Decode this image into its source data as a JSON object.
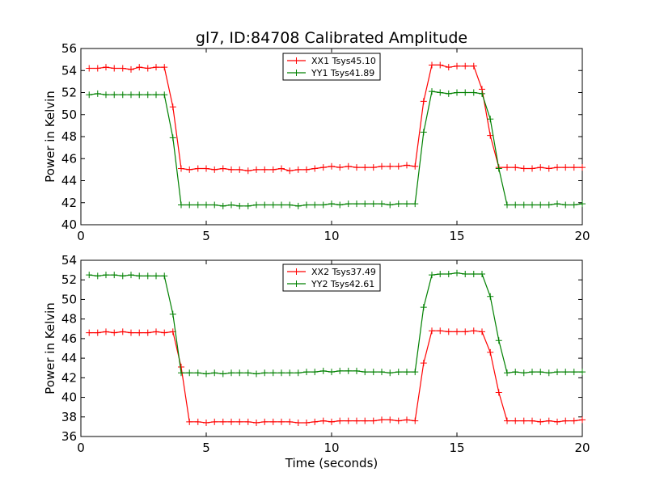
{
  "chart_data": [
    {
      "type": "line",
      "title": "gl7, ID:84708 Calibrated Amplitude",
      "xlabel": "",
      "ylabel": "Power in Kelvin",
      "xlim": [
        0,
        20
      ],
      "ylim": [
        40,
        56
      ],
      "xticks": [
        "0",
        "5",
        "10",
        "15",
        "20"
      ],
      "yticks": [
        "40",
        "42",
        "44",
        "46",
        "48",
        "50",
        "52",
        "54",
        "56"
      ],
      "grid": false,
      "legend": "top-center",
      "x": [
        0.33,
        0.67,
        1.0,
        1.33,
        1.67,
        2.0,
        2.33,
        2.67,
        3.0,
        3.33,
        3.67,
        4.0,
        4.33,
        4.67,
        5.0,
        5.33,
        5.67,
        6.0,
        6.33,
        6.67,
        7.0,
        7.33,
        7.67,
        8.0,
        8.33,
        8.67,
        9.0,
        9.33,
        9.67,
        10.0,
        10.33,
        10.67,
        11.0,
        11.33,
        11.67,
        12.0,
        12.33,
        12.67,
        13.0,
        13.33,
        13.67,
        14.0,
        14.33,
        14.67,
        15.0,
        15.33,
        15.67,
        16.0,
        16.33,
        16.67,
        17.0,
        17.33,
        17.67,
        18.0,
        18.33,
        18.67,
        19.0,
        19.33,
        19.67,
        20.0
      ],
      "series": [
        {
          "name": "XX1 Tsys45.10",
          "color": "#ff0000",
          "values": [
            54.2,
            54.2,
            54.3,
            54.2,
            54.2,
            54.1,
            54.3,
            54.2,
            54.3,
            54.3,
            50.7,
            45.1,
            45.0,
            45.1,
            45.1,
            45.0,
            45.1,
            45.0,
            45.0,
            44.9,
            45.0,
            45.0,
            45.0,
            45.1,
            44.9,
            45.0,
            45.0,
            45.1,
            45.2,
            45.3,
            45.2,
            45.3,
            45.2,
            45.2,
            45.2,
            45.3,
            45.3,
            45.3,
            45.4,
            45.3,
            51.2,
            54.5,
            54.5,
            54.3,
            54.4,
            54.4,
            54.4,
            52.3,
            48.1,
            45.2,
            45.2,
            45.2,
            45.1,
            45.1,
            45.2,
            45.1,
            45.2,
            45.2,
            45.2,
            45.2
          ]
        },
        {
          "name": "YY1 Tsys41.89",
          "color": "#008000",
          "values": [
            51.8,
            51.9,
            51.8,
            51.8,
            51.8,
            51.8,
            51.8,
            51.8,
            51.8,
            51.8,
            47.9,
            41.8,
            41.8,
            41.8,
            41.8,
            41.8,
            41.7,
            41.8,
            41.7,
            41.7,
            41.8,
            41.8,
            41.8,
            41.8,
            41.8,
            41.7,
            41.8,
            41.8,
            41.8,
            41.9,
            41.8,
            41.9,
            41.9,
            41.9,
            41.9,
            41.9,
            41.8,
            41.9,
            41.9,
            41.9,
            48.4,
            52.1,
            52.0,
            51.9,
            52.0,
            52.0,
            52.0,
            51.9,
            49.6,
            45.1,
            41.8,
            41.8,
            41.8,
            41.8,
            41.8,
            41.8,
            41.9,
            41.8,
            41.8,
            41.9
          ]
        }
      ]
    },
    {
      "type": "line",
      "title": "",
      "xlabel": "Time (seconds)",
      "ylabel": "Power in Kelvin",
      "xlim": [
        0,
        20
      ],
      "ylim": [
        36,
        54
      ],
      "xticks": [
        "0",
        "5",
        "10",
        "15",
        "20"
      ],
      "yticks": [
        "36",
        "38",
        "40",
        "42",
        "44",
        "46",
        "48",
        "50",
        "52",
        "54"
      ],
      "grid": false,
      "legend": "top-center",
      "x": [
        0.33,
        0.67,
        1.0,
        1.33,
        1.67,
        2.0,
        2.33,
        2.67,
        3.0,
        3.33,
        3.67,
        4.0,
        4.33,
        4.67,
        5.0,
        5.33,
        5.67,
        6.0,
        6.33,
        6.67,
        7.0,
        7.33,
        7.67,
        8.0,
        8.33,
        8.67,
        9.0,
        9.33,
        9.67,
        10.0,
        10.33,
        10.67,
        11.0,
        11.33,
        11.67,
        12.0,
        12.33,
        12.67,
        13.0,
        13.33,
        13.67,
        14.0,
        14.33,
        14.67,
        15.0,
        15.33,
        15.67,
        16.0,
        16.33,
        16.67,
        17.0,
        17.33,
        17.67,
        18.0,
        18.33,
        18.67,
        19.0,
        19.33,
        19.67,
        20.0
      ],
      "series": [
        {
          "name": "XX2 Tsys37.49",
          "color": "#ff0000",
          "values": [
            46.6,
            46.6,
            46.7,
            46.6,
            46.7,
            46.6,
            46.6,
            46.6,
            46.7,
            46.6,
            46.7,
            43.1,
            37.5,
            37.5,
            37.4,
            37.5,
            37.5,
            37.5,
            37.5,
            37.5,
            37.4,
            37.5,
            37.5,
            37.5,
            37.5,
            37.4,
            37.4,
            37.5,
            37.6,
            37.5,
            37.6,
            37.6,
            37.6,
            37.6,
            37.6,
            37.7,
            37.7,
            37.6,
            37.7,
            37.6,
            43.5,
            46.8,
            46.8,
            46.7,
            46.7,
            46.7,
            46.8,
            46.7,
            44.6,
            40.5,
            37.6,
            37.6,
            37.6,
            37.6,
            37.5,
            37.6,
            37.5,
            37.6,
            37.6,
            37.7
          ]
        },
        {
          "name": "YY2 Tsys42.61",
          "color": "#008000",
          "values": [
            52.5,
            52.4,
            52.5,
            52.5,
            52.4,
            52.5,
            52.4,
            52.4,
            52.4,
            52.4,
            48.5,
            42.5,
            42.5,
            42.5,
            42.4,
            42.5,
            42.4,
            42.5,
            42.5,
            42.5,
            42.4,
            42.5,
            42.5,
            42.5,
            42.5,
            42.5,
            42.6,
            42.6,
            42.7,
            42.6,
            42.7,
            42.7,
            42.7,
            42.6,
            42.6,
            42.6,
            42.5,
            42.6,
            42.6,
            42.6,
            49.2,
            52.5,
            52.6,
            52.6,
            52.7,
            52.6,
            52.6,
            52.6,
            50.3,
            45.8,
            42.5,
            42.6,
            42.5,
            42.6,
            42.6,
            42.5,
            42.6,
            42.6,
            42.6,
            42.6
          ]
        }
      ]
    }
  ]
}
